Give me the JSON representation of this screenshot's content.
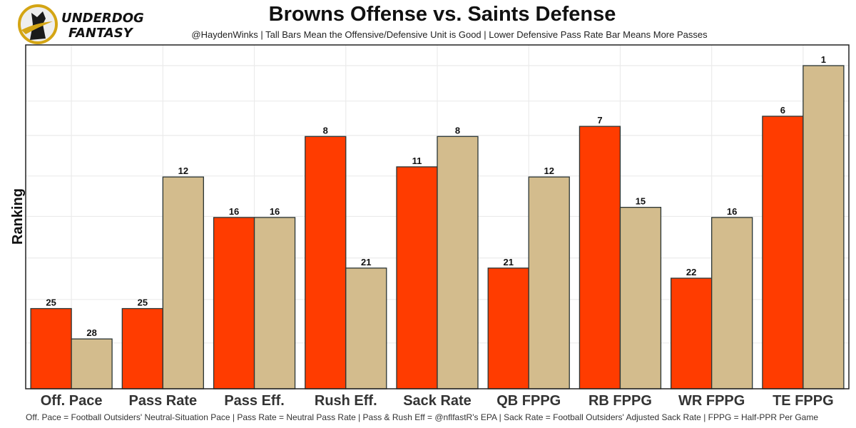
{
  "logo": {
    "line1": "UNDERDOG",
    "line2": "FANTASY"
  },
  "chart_data": {
    "type": "bar",
    "title": "Browns Offense vs. Saints Defense",
    "subtitle": "@HaydenWinks | Tall Bars Mean the Offensive/Defensive Unit is Good | Lower Defensive Pass Rate Bar Means More Passes",
    "ylabel": "Ranking",
    "xlabel": "",
    "caption": "Off. Pace = Football Outsiders' Neutral-Situation Pace | Pass Rate = Neutral Pass Rate | Pass & Rush Eff = @nflfastR's EPA | Sack Rate = Football Outsiders' Adjusted Sack Rate | FPPG = Half-PPR Per Game",
    "categories": [
      "Off. Pace",
      "Pass Rate",
      "Pass Eff.",
      "Rush Eff.",
      "Sack Rate",
      "QB FPPG",
      "RB FPPG",
      "WR FPPG",
      "TE FPPG"
    ],
    "series": [
      {
        "values": [
          25,
          25,
          16,
          8,
          11,
          21,
          7,
          22,
          6
        ],
        "color": "#FF3C00"
      },
      {
        "values": [
          28,
          12,
          16,
          21,
          8,
          12,
          15,
          16,
          1
        ],
        "color": "#D3BC8D"
      }
    ],
    "y_axis": "rank, reversed (1 = tallest bar)",
    "grid": true,
    "legend": "none"
  }
}
